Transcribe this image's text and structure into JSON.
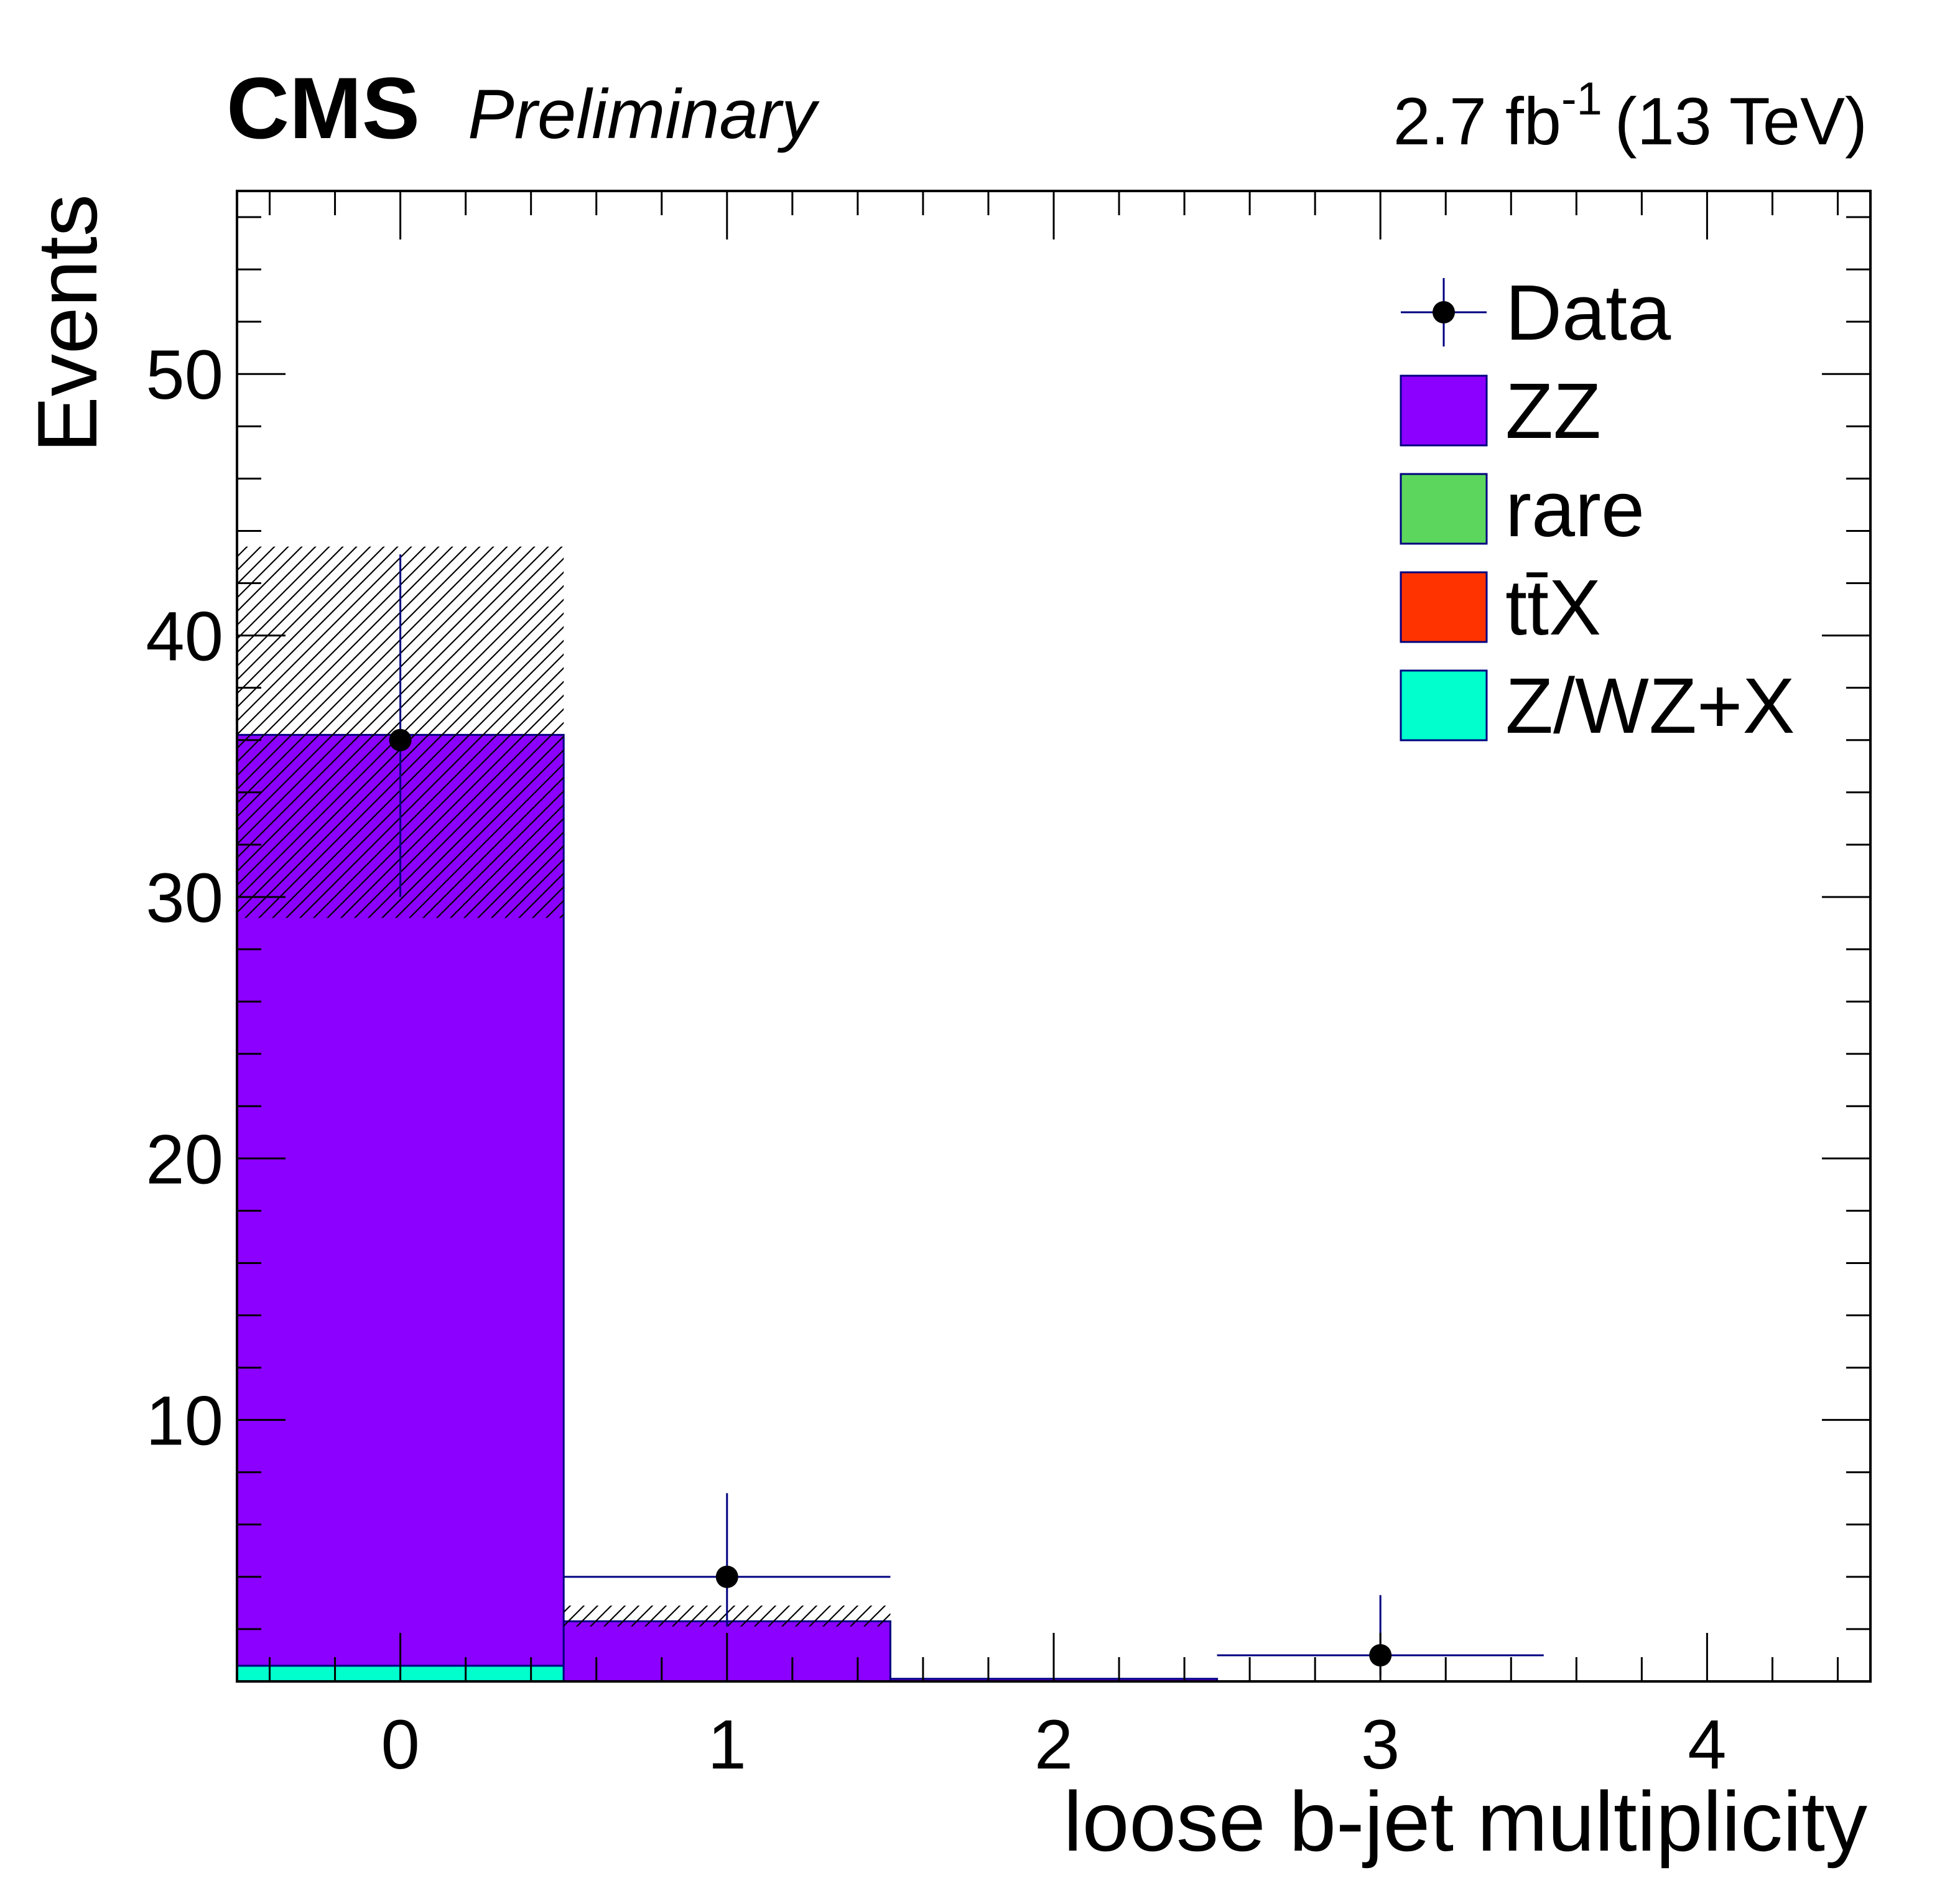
{
  "header": {
    "experiment": "CMS",
    "status": "Preliminary",
    "lumi_value": "2.7 fb",
    "lumi_exponent": "-1",
    "energy": "(13 TeV)"
  },
  "chart_data": {
    "type": "bar",
    "stacked": true,
    "categories": [
      "0",
      "1",
      "2",
      "3",
      "4"
    ],
    "x": [
      0,
      1,
      2,
      3,
      4
    ],
    "xlim": [
      -0.5,
      4.5
    ],
    "ylim": [
      0,
      57
    ],
    "xlabel": "loose b-jet multiplicity",
    "ylabel": "Events",
    "y_ticks": [
      10,
      20,
      30,
      40,
      50
    ],
    "grid": false,
    "legend_position": "top-right",
    "series": [
      {
        "name": "Z/WZ+X",
        "color": "#00ffcc",
        "values": [
          0.6,
          0,
          0,
          0,
          0
        ]
      },
      {
        "name": "ttX",
        "color": "#ff3300",
        "values": [
          0,
          0,
          0,
          0,
          0
        ]
      },
      {
        "name": "rare",
        "color": "#5cd65c",
        "values": [
          0,
          0,
          0,
          0,
          0
        ]
      },
      {
        "name": "ZZ",
        "color": "#8c00ff",
        "values": [
          35.6,
          2.3,
          0.1,
          0,
          0
        ]
      }
    ],
    "uncertainty": {
      "style": "hatched",
      "down": [
        29.2,
        2.1,
        0.1,
        0,
        0
      ],
      "up": [
        43.4,
        2.9,
        0.1,
        0,
        0
      ]
    },
    "data": {
      "name": "Data",
      "color": "#000080",
      "x": [
        0,
        1,
        3
      ],
      "y": [
        36,
        4,
        1
      ],
      "err_low": [
        6,
        1.9,
        0.8
      ],
      "err_high": [
        7.1,
        3.2,
        2.3
      ],
      "x_err": [
        0,
        0.5,
        0.5
      ]
    },
    "legend": [
      {
        "label": "Data",
        "kind": "marker"
      },
      {
        "label": "ZZ",
        "kind": "box",
        "color": "#8c00ff"
      },
      {
        "label": "rare",
        "kind": "box",
        "color": "#5cd65c"
      },
      {
        "label": "tt̄X",
        "kind": "box",
        "color": "#ff3300"
      },
      {
        "label": "Z/WZ+X",
        "kind": "box",
        "color": "#00ffcc"
      }
    ]
  }
}
